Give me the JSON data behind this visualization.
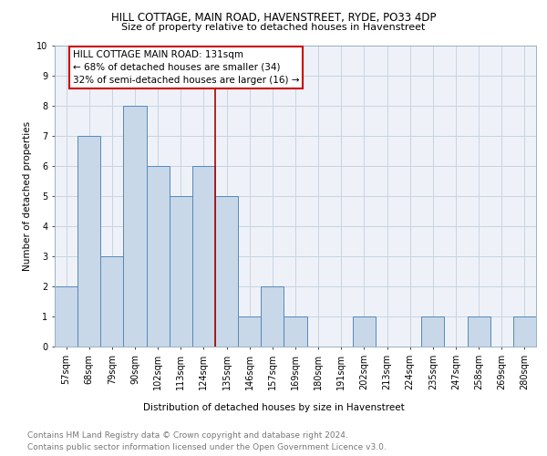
{
  "title": "HILL COTTAGE, MAIN ROAD, HAVENSTREET, RYDE, PO33 4DP",
  "subtitle": "Size of property relative to detached houses in Havenstreet",
  "xlabel": "Distribution of detached houses by size in Havenstreet",
  "ylabel": "Number of detached properties",
  "categories": [
    "57sqm",
    "68sqm",
    "79sqm",
    "90sqm",
    "102sqm",
    "113sqm",
    "124sqm",
    "135sqm",
    "146sqm",
    "157sqm",
    "169sqm",
    "180sqm",
    "191sqm",
    "202sqm",
    "213sqm",
    "224sqm",
    "235sqm",
    "247sqm",
    "258sqm",
    "269sqm",
    "280sqm"
  ],
  "values": [
    2,
    7,
    3,
    8,
    6,
    5,
    6,
    5,
    1,
    2,
    1,
    0,
    0,
    1,
    0,
    0,
    1,
    0,
    1,
    0,
    1
  ],
  "bar_color": "#c8d8e8",
  "bar_edge_color": "#5588bb",
  "vline_x": 6.5,
  "vline_color": "#aa0000",
  "annotation_lines": [
    "HILL COTTAGE MAIN ROAD: 131sqm",
    "← 68% of detached houses are smaller (34)",
    "32% of semi-detached houses are larger (16) →"
  ],
  "annotation_box_edge": "#cc0000",
  "footer_line1": "Contains HM Land Registry data © Crown copyright and database right 2024.",
  "footer_line2": "Contains public sector information licensed under the Open Government Licence v3.0.",
  "ylim": [
    0,
    10
  ],
  "grid_color": "#c8d4e0",
  "background_color": "#eef2f8",
  "title_fontsize": 8.5,
  "subtitle_fontsize": 8,
  "axis_label_fontsize": 7.5,
  "tick_fontsize": 7,
  "footer_fontsize": 6.5,
  "annotation_fontsize": 7.5
}
